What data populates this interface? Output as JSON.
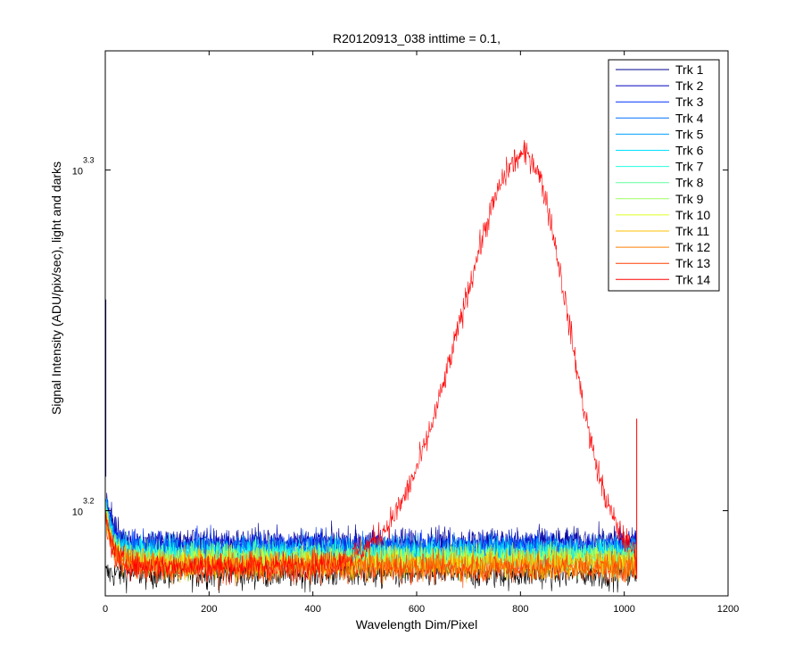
{
  "chart_data": {
    "type": "line",
    "title": "R20120913_038 inttime = 0.1,",
    "xlabel": "Wavelength Dim/Pixel",
    "ylabel": "Signal Intensity (ADU/pix/sec), light and darks",
    "xlim": [
      0,
      1200
    ],
    "ylim": [
      3.175,
      3.335
    ],
    "y_scale": "log10",
    "grid": false,
    "legend_placement": "top-right",
    "x_ticks": [
      "0",
      "200",
      "400",
      "600",
      "800",
      "1000",
      "1200"
    ],
    "y_ticks": [
      {
        "base": "10",
        "exponent": "3.2",
        "value": 3.2
      },
      {
        "base": "10",
        "exponent": "3.3",
        "value": 3.3
      }
    ],
    "x_range_data": [
      1,
      1024
    ],
    "series": [
      {
        "name": "Trk 1",
        "color": "#00008F",
        "base_exp": 3.1907,
        "noise": 0.0022,
        "initial_exp": 3.205
      },
      {
        "name": "Trk 2",
        "color": "#0000BF",
        "base_exp": 3.19,
        "noise": 0.0022,
        "initial_exp": 3.204
      },
      {
        "name": "Trk 3",
        "color": "#0030FF",
        "base_exp": 3.1893,
        "noise": 0.0022,
        "initial_exp": 3.203
      },
      {
        "name": "Trk 4",
        "color": "#0070FF",
        "base_exp": 3.1886,
        "noise": 0.0022,
        "initial_exp": 3.203
      },
      {
        "name": "Trk 5",
        "color": "#00A0FF",
        "base_exp": 3.188,
        "noise": 0.0022,
        "initial_exp": 3.202
      },
      {
        "name": "Trk 6",
        "color": "#00DFFF",
        "base_exp": 3.1874,
        "noise": 0.0022,
        "initial_exp": 3.202
      },
      {
        "name": "Trk 7",
        "color": "#20FFDF",
        "base_exp": 3.1868,
        "noise": 0.0022,
        "initial_exp": 3.201
      },
      {
        "name": "Trk 8",
        "color": "#60FF9F",
        "base_exp": 3.1862,
        "noise": 0.0022,
        "initial_exp": 3.201
      },
      {
        "name": "Trk 9",
        "color": "#9FFF60",
        "base_exp": 3.1856,
        "noise": 0.0022,
        "initial_exp": 3.2
      },
      {
        "name": "Trk 10",
        "color": "#DFFF20",
        "base_exp": 3.185,
        "noise": 0.0022,
        "initial_exp": 3.2
      },
      {
        "name": "Trk 11",
        "color": "#FFBF00",
        "base_exp": 3.1844,
        "noise": 0.0022,
        "initial_exp": 3.199
      },
      {
        "name": "Trk 12",
        "color": "#FF7F00",
        "base_exp": 3.1838,
        "noise": 0.0022,
        "initial_exp": 3.199
      },
      {
        "name": "Trk 13",
        "color": "#FF3F00",
        "base_exp": 3.1832,
        "noise": 0.0022,
        "initial_exp": 3.198
      },
      {
        "name": "Trk 14",
        "color": "#FF0000",
        "base_exp": 3.1838,
        "noise": 0.002,
        "initial_exp": 3.198,
        "peak": {
          "center_x": 810,
          "peak_exp": 3.3045,
          "width_left": 175,
          "width_right": 115
        }
      }
    ],
    "darks": {
      "color": "#000000",
      "base_exp": 3.1815,
      "noise": 0.0022
    }
  }
}
